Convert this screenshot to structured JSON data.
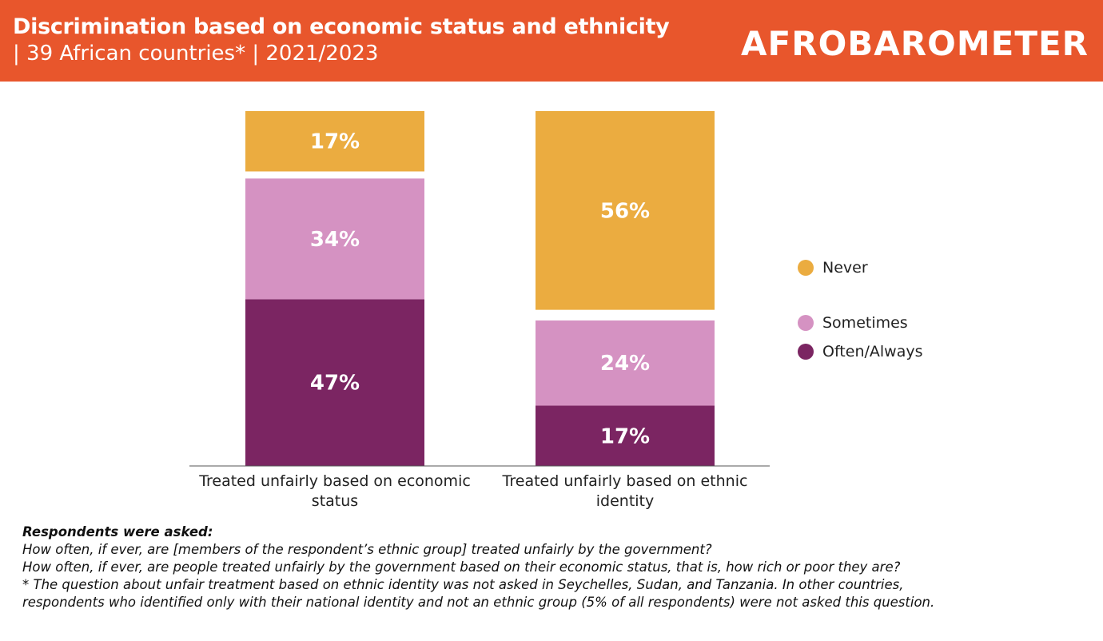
{
  "header": {
    "title": "Discrimination based on economic status and ethnicity",
    "subtitle": "| 39 African countries* | 2021/2023",
    "logo": "AFROBAROMETER"
  },
  "chart_data": {
    "type": "bar",
    "stacked": true,
    "categories": [
      "Treated unfairly based on economic status",
      "Treated unfairly based on ethnic identity"
    ],
    "series": [
      {
        "name": "Often/Always",
        "color": "#7B2562",
        "values": [
          47,
          17
        ]
      },
      {
        "name": "Sometimes",
        "color": "#D592C2",
        "values": [
          34,
          24
        ]
      },
      {
        "name": "Never",
        "color": "#EBAC40",
        "values": [
          17,
          56
        ]
      }
    ],
    "data_labels": [
      "47%",
      "17%",
      "34%",
      "24%",
      "17%",
      "56%"
    ],
    "ylim": [
      0,
      100
    ],
    "grid": false,
    "legend": "right",
    "legend_order": [
      "Never",
      "Sometimes",
      "Often/Always"
    ]
  },
  "notes": {
    "heading": "Respondents were asked:",
    "lines": [
      "How often, if ever, are [members of the respondent’s ethnic group] treated unfairly by the government?",
      "How often, if ever, are people treated unfairly by the government based on their economic status, that is, how rich or poor they are?",
      "* The question about unfair treatment based on ethnic identity was not asked in Seychelles, Sudan, and Tanzania. In other countries,",
      "respondents who identified only with their national identity and not an ethnic group (5% of all respondents) were not asked this question."
    ]
  }
}
